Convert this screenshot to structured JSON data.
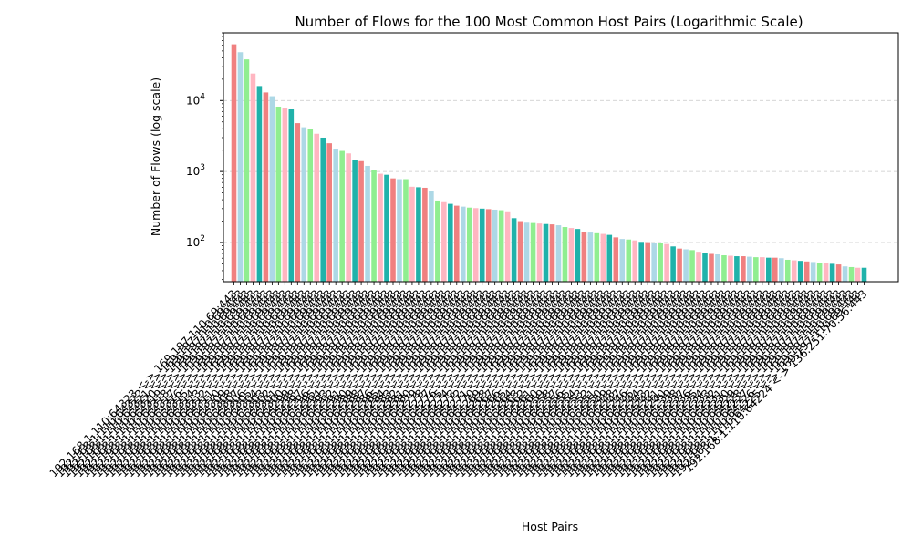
{
  "chart_data": {
    "type": "bar",
    "title": "Number of Flows for the 100 Most Common Host Pairs (Logarithmic Scale)",
    "xlabel": "Host Pairs",
    "ylabel": "Number of Flows (log scale)",
    "yscale": "log",
    "ylim": [
      28,
      90000
    ],
    "yticks": [
      {
        "value": 100,
        "label": "10",
        "exp": "2"
      },
      {
        "value": 1000,
        "label": "10",
        "exp": "3"
      },
      {
        "value": 10000,
        "label": "10",
        "exp": "4"
      }
    ],
    "grid": "y-dashed",
    "colors": [
      "#f08080",
      "#add8e6",
      "#90ee90",
      "#ffb6c1",
      "#20b2aa"
    ],
    "categories": [
      "192.168.1.110:64323 <-> 169.197.110.69:443",
      "192.168.1.110:64322 <-> 169.197.110.69:443",
      "192.168.1.110:64321 <-> 169.197.110.69:443",
      "192.168.1.110:64320 <-> 169.197.110.69:443",
      "192.168.1.110:64319 <-> 169.197.110.69:443",
      "192.168.1.110:64318 <-> 169.197.110.69:443",
      "192.168.1.110:64317 <-> 169.197.110.69:443",
      "192.168.1.110:64316 <-> 169.197.110.69:443",
      "192.168.1.110:64315 <-> 169.197.110.69:443",
      "192.168.1.110:64314 <-> 169.197.110.69:443",
      "192.168.1.110:64313 <-> 169.197.110.69:443",
      "192.168.1.110:64312 <-> 169.197.110.69:443",
      "192.168.1.110:64311 <-> 169.197.110.69:443",
      "192.168.1.110:64310 <-> 169.197.110.69:443",
      "192.168.1.110:64309 <-> 169.197.110.69:443",
      "192.168.1.110:64308 <-> 169.197.110.69:443",
      "192.168.1.110:64307 <-> 169.197.110.69:443",
      "192.168.1.110:64306 <-> 169.197.110.69:443",
      "192.168.1.110:64305 <-> 169.197.110.69:443",
      "192.168.1.110:64304 <-> 169.197.110.69:443",
      "192.168.1.110:64303 <-> 169.197.110.69:443",
      "192.168.1.110:64302 <-> 169.197.110.69:443",
      "192.168.1.110:64301 <-> 169.197.110.69:443",
      "192.168.1.110:64300 <-> 169.197.110.69:443",
      "192.168.1.110:64299 <-> 169.197.110.69:443",
      "192.168.1.110:64298 <-> 169.197.110.69:443",
      "192.168.1.110:64297 <-> 169.197.110.69:443",
      "192.168.1.110:64296 <-> 169.197.110.69:443",
      "192.168.1.110:64295 <-> 169.197.110.69:443",
      "192.168.1.110:64294 <-> 169.197.110.69:443",
      "192.168.1.110:64293 <-> 169.197.110.69:443",
      "192.168.1.110:64292 <-> 169.197.110.69:443",
      "192.168.1.110:64291 <-> 169.197.110.69:443",
      "192.168.1.110:64290 <-> 169.197.110.69:443",
      "192.168.1.110:64289 <-> 169.197.110.69:443",
      "192.168.1.110:64288 <-> 169.197.110.69:443",
      "192.168.1.110:64287 <-> 169.197.110.69:443",
      "192.168.1.110:64286 <-> 169.197.110.69:443",
      "192.168.1.110:64285 <-> 169.197.110.69:443",
      "192.168.1.110:64284 <-> 169.197.110.69:443",
      "192.168.1.110:64283 <-> 169.197.110.69:443",
      "192.168.1.110:64282 <-> 169.197.110.69:443",
      "192.168.1.110:64281 <-> 169.197.110.69:443",
      "192.168.1.110:64280 <-> 169.197.110.69:443",
      "192.168.1.110:64279 <-> 169.197.110.69:443",
      "192.168.1.110:64278 <-> 169.197.110.69:443",
      "192.168.1.110:64277 <-> 169.197.110.69:443",
      "192.168.1.110:64276 <-> 169.197.110.69:443",
      "192.168.1.110:64275 <-> 169.197.110.69:443",
      "192.168.1.110:64274 <-> 169.197.110.69:443",
      "192.168.1.110:64273 <-> 169.197.110.69:443",
      "192.168.1.110:64272 <-> 169.197.110.69:443",
      "192.168.1.110:64271 <-> 169.197.110.69:443",
      "192.168.1.110:64270 <-> 169.197.110.69:443",
      "192.168.1.110:64269 <-> 169.197.110.69:443",
      "192.168.1.110:64268 <-> 169.197.110.69:443",
      "192.168.1.110:64267 <-> 169.197.110.69:443",
      "192.168.1.110:64266 <-> 169.197.110.69:443",
      "192.168.1.110:64265 <-> 169.197.110.69:443",
      "192.168.1.110:64264 <-> 169.197.110.69:443",
      "192.168.1.110:64263 <-> 169.197.110.69:443",
      "192.168.1.110:64262 <-> 169.197.110.69:443",
      "192.168.1.110:64261 <-> 169.197.110.69:443",
      "192.168.1.110:64260 <-> 169.197.110.69:443",
      "192.168.1.110:64259 <-> 169.197.110.69:443",
      "192.168.1.110:64258 <-> 169.197.110.69:443",
      "192.168.1.110:64257 <-> 169.197.110.69:443",
      "192.168.1.110:64256 <-> 169.197.110.69:443",
      "192.168.1.110:64255 <-> 169.197.110.69:443",
      "192.168.1.110:64254 <-> 169.197.110.69:443",
      "192.168.1.110:64253 <-> 169.197.110.69:443",
      "192.168.1.110:64252 <-> 169.197.110.69:443",
      "192.168.1.110:64251 <-> 169.197.110.69:443",
      "192.168.1.110:64250 <-> 169.197.110.69:443",
      "192.168.1.110:64249 <-> 169.197.110.69:443",
      "192.168.1.110:64248 <-> 169.197.110.69:443",
      "192.168.1.110:64247 <-> 169.197.110.69:443",
      "192.168.1.110:64246 <-> 169.197.110.69:443",
      "192.168.1.110:64245 <-> 169.197.110.69:443",
      "192.168.1.110:64244 <-> 169.197.110.69:443",
      "192.168.1.110:64243 <-> 169.197.110.69:443",
      "192.168.1.110:64242 <-> 169.197.110.69:443",
      "192.168.1.110:64241 <-> 169.197.110.69:443",
      "192.168.1.110:64240 <-> 169.197.110.69:443",
      "192.168.1.110:64239 <-> 169.197.110.69:443",
      "192.168.1.110:64238 <-> 169.197.110.69:443",
      "192.168.1.110:64237 <-> 169.197.110.69:443",
      "192.168.1.110:64236 <-> 169.197.110.69:443",
      "192.168.1.110:64235 <-> 169.197.110.69:443",
      "192.168.1.110:64234 <-> 169.197.110.69:443",
      "192.168.1.110:64233 <-> 169.197.110.69:443",
      "192.168.1.110:64232 <-> 169.197.110.69:443",
      "192.168.1.110:64231 <-> 169.197.110.69:443",
      "192.168.1.110:64230 <-> 169.197.110.69:443",
      "192.168.1.110:64229 <-> 169.197.110.69:443",
      "192.168.1.110:64228 <-> 169.197.110.69:443",
      "192.168.1.110:64227 <-> 169.197.110.69:443",
      "192.168.1.110:64226 <-> 169.197.110.69:443",
      "192.168.1.110:64225 <-> 169.197.110.69:443",
      "192.168.1.110:64224 <-> 136.251.70.56:443"
    ],
    "values": [
      62000,
      48000,
      38000,
      24000,
      16000,
      13000,
      11500,
      8200,
      7900,
      7500,
      4800,
      4200,
      4000,
      3400,
      3000,
      2500,
      2100,
      1950,
      1800,
      1450,
      1400,
      1200,
      1050,
      930,
      900,
      800,
      780,
      780,
      610,
      600,
      590,
      530,
      390,
      370,
      350,
      330,
      320,
      310,
      305,
      300,
      295,
      290,
      285,
      275,
      220,
      200,
      190,
      188,
      185,
      182,
      180,
      175,
      165,
      160,
      155,
      140,
      138,
      135,
      132,
      128,
      118,
      112,
      110,
      107,
      102,
      101,
      100,
      99,
      95,
      88,
      82,
      80,
      78,
      74,
      71,
      69,
      68,
      66,
      65,
      64,
      64,
      63,
      62,
      62,
      61,
      61,
      60,
      57,
      56,
      55,
      54,
      53,
      52,
      51,
      50,
      49,
      46,
      45,
      44,
      44
    ]
  }
}
